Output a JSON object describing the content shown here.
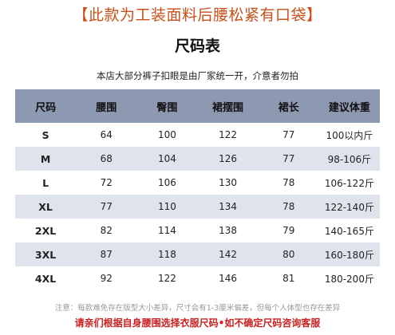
{
  "banner": "【此款为工装面料后腰松紧有口袋】",
  "title": "尺码表",
  "subtitle": "本店大部分裤子扣眼是由厂家统一开，介意者勿拍",
  "table": {
    "headers": [
      "尺码",
      "腰围",
      "臀围",
      "裙摆围",
      "裙长",
      "建议体重"
    ],
    "rows": [
      [
        "S",
        "64",
        "100",
        "122",
        "77",
        "100以内斤"
      ],
      [
        "M",
        "68",
        "104",
        "126",
        "77",
        "98-106斤"
      ],
      [
        "L",
        "72",
        "106",
        "130",
        "78",
        "106-122斤"
      ],
      [
        "XL",
        "77",
        "110",
        "134",
        "78",
        "122-140斤"
      ],
      [
        "2XL",
        "82",
        "114",
        "138",
        "79",
        "140-165斤"
      ],
      [
        "3XL",
        "87",
        "118",
        "142",
        "80",
        "160-180斤"
      ],
      [
        "4XL",
        "92",
        "122",
        "146",
        "81",
        "180-200斤"
      ]
    ]
  },
  "note": "注意：每款难免存在版型大小差异，尺寸会有1-3厘米偏差，但每个人体型也存在差异",
  "warning": "请亲们根据自身腰围选择衣服尺码•如不确定尺码咨询客服",
  "colors": {
    "banner": "#c8501b",
    "header_bg": "#8d98b1",
    "stripe_bg": "#dfe3ec",
    "warning": "#cc1f1f"
  }
}
